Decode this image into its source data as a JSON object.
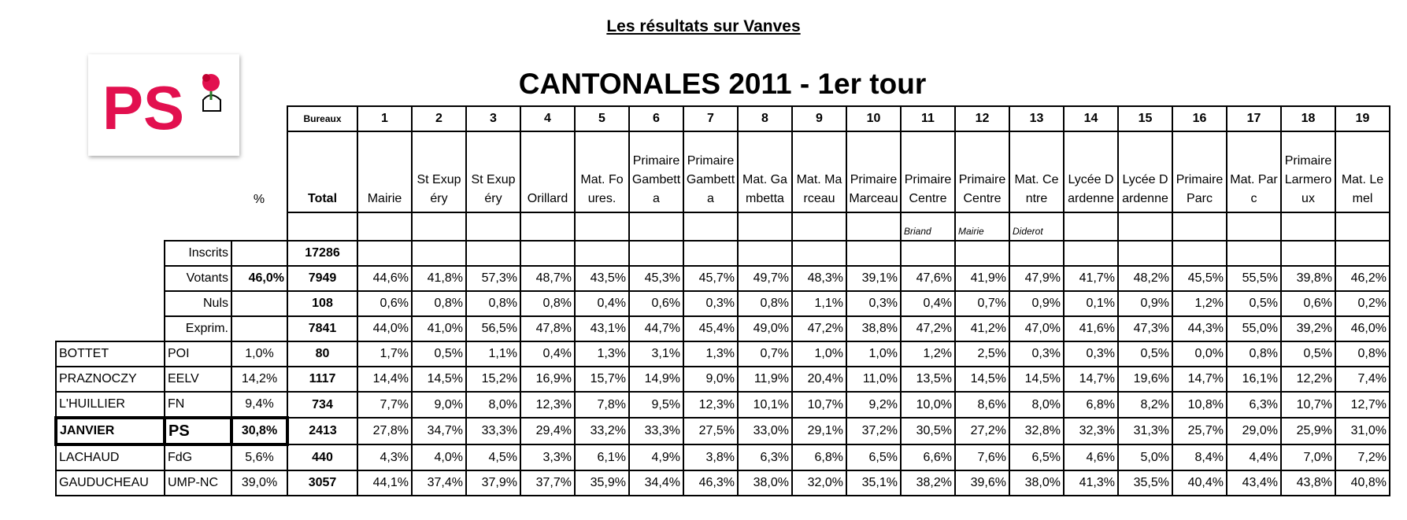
{
  "header": {
    "title": "Les résultats sur Vanves"
  },
  "logo": {
    "text": "PS"
  },
  "table": {
    "title": "CANTONALES 2011 - 1er tour",
    "bureaux_label": "Bureaux",
    "bureaux": [
      "1",
      "2",
      "3",
      "4",
      "5",
      "6",
      "7",
      "8",
      "9",
      "10",
      "11",
      "12",
      "13",
      "14",
      "15",
      "16",
      "17",
      "18",
      "19"
    ],
    "percent_label": "%",
    "total_label": "Total",
    "bureau_names": [
      "Mairie",
      "St Exupéry",
      "St Exupéry",
      "Orillard",
      "Mat. Foures.",
      "Primaire Gambetta",
      "Primaire Gambetta",
      "Mat. Gambetta",
      "Mat. Marceau",
      "Primaire Marceau",
      "Primaire Centre",
      "Primaire Centre",
      "Mat. Centre",
      "Lycée Dardenne",
      "Lycée Dardenne",
      "Primaire Parc",
      "Mat. Parc",
      "Primaire Larmeroux",
      "Mat. Lemel"
    ],
    "bureau_notes": [
      {
        "bureau": "11",
        "note": "Briand"
      },
      {
        "bureau": "12",
        "note": "Mairie"
      },
      {
        "bureau": "13",
        "note": "Diderot"
      }
    ],
    "summary_rows": [
      {
        "label": "Inscrits",
        "total": "17286"
      },
      {
        "label": "Votants",
        "percent": "46,0%",
        "total": "7949",
        "values": [
          "44,6%",
          "41,8%",
          "57,3%",
          "48,7%",
          "43,5%",
          "45,3%",
          "45,7%",
          "49,7%",
          "48,3%",
          "39,1%",
          "47,6%",
          "41,9%",
          "47,9%",
          "41,7%",
          "48,2%",
          "45,5%",
          "55,5%",
          "39,8%",
          "46,2%"
        ]
      },
      {
        "label": "Nuls",
        "total": "108",
        "values": [
          "0,6%",
          "0,8%",
          "0,8%",
          "0,8%",
          "0,4%",
          "0,6%",
          "0,3%",
          "0,8%",
          "1,1%",
          "0,3%",
          "0,4%",
          "0,7%",
          "0,9%",
          "0,1%",
          "0,9%",
          "1,2%",
          "0,5%",
          "0,6%",
          "0,2%"
        ]
      },
      {
        "label": "Exprim.",
        "total": "7841",
        "values": [
          "44,0%",
          "41,0%",
          "56,5%",
          "47,8%",
          "43,1%",
          "44,7%",
          "45,4%",
          "49,0%",
          "47,2%",
          "38,8%",
          "47,2%",
          "41,2%",
          "47,0%",
          "41,6%",
          "47,3%",
          "44,3%",
          "55,0%",
          "39,2%",
          "46,0%"
        ]
      }
    ],
    "candidates": [
      {
        "name": "BOTTET",
        "party": "POI",
        "percent": "1,0%",
        "total": "80",
        "values": [
          "1,7%",
          "0,5%",
          "1,1%",
          "0,4%",
          "1,3%",
          "3,1%",
          "1,3%",
          "0,7%",
          "1,0%",
          "1,0%",
          "1,2%",
          "2,5%",
          "0,3%",
          "0,3%",
          "0,5%",
          "0,0%",
          "0,8%",
          "0,5%",
          "0,8%"
        ]
      },
      {
        "name": "PRAZNOCZY",
        "party": "EELV",
        "percent": "14,2%",
        "total": "1117",
        "values": [
          "14,4%",
          "14,5%",
          "15,2%",
          "16,9%",
          "15,7%",
          "14,9%",
          "9,0%",
          "11,9%",
          "20,4%",
          "11,0%",
          "13,5%",
          "14,5%",
          "14,5%",
          "14,7%",
          "19,6%",
          "14,7%",
          "16,1%",
          "12,2%",
          "7,4%"
        ]
      },
      {
        "name": "L'HUILLIER",
        "party": "FN",
        "percent": "9,4%",
        "total": "734",
        "values": [
          "7,7%",
          "9,0%",
          "8,0%",
          "12,3%",
          "7,8%",
          "9,5%",
          "12,3%",
          "10,1%",
          "10,7%",
          "9,2%",
          "10,0%",
          "8,6%",
          "8,0%",
          "6,8%",
          "8,2%",
          "10,8%",
          "6,3%",
          "10,7%",
          "12,7%"
        ]
      },
      {
        "name": "JANVIER",
        "party": "PS",
        "percent": "30,8%",
        "total": "2413",
        "highlight": true,
        "values": [
          "27,8%",
          "34,7%",
          "33,3%",
          "29,4%",
          "33,2%",
          "33,3%",
          "27,5%",
          "33,0%",
          "29,1%",
          "37,2%",
          "30,5%",
          "27,2%",
          "32,8%",
          "32,3%",
          "31,3%",
          "25,7%",
          "29,0%",
          "25,9%",
          "31,0%"
        ]
      },
      {
        "name": "LACHAUD",
        "party": "FdG",
        "percent": "5,6%",
        "total": "440",
        "values": [
          "4,3%",
          "4,0%",
          "4,5%",
          "3,3%",
          "6,1%",
          "4,9%",
          "3,8%",
          "6,3%",
          "6,8%",
          "6,5%",
          "6,6%",
          "7,6%",
          "6,5%",
          "4,6%",
          "5,0%",
          "8,4%",
          "4,4%",
          "7,0%",
          "7,2%"
        ]
      },
      {
        "name": "GAUDUCHEAU",
        "party": "UMP-NC",
        "percent": "39,0%",
        "total": "3057",
        "values": [
          "44,1%",
          "37,4%",
          "37,9%",
          "37,7%",
          "35,9%",
          "34,4%",
          "46,3%",
          "38,0%",
          "32,0%",
          "35,1%",
          "38,2%",
          "39,6%",
          "38,0%",
          "41,3%",
          "35,5%",
          "40,4%",
          "43,4%",
          "43,8%",
          "40,8%"
        ]
      }
    ]
  }
}
